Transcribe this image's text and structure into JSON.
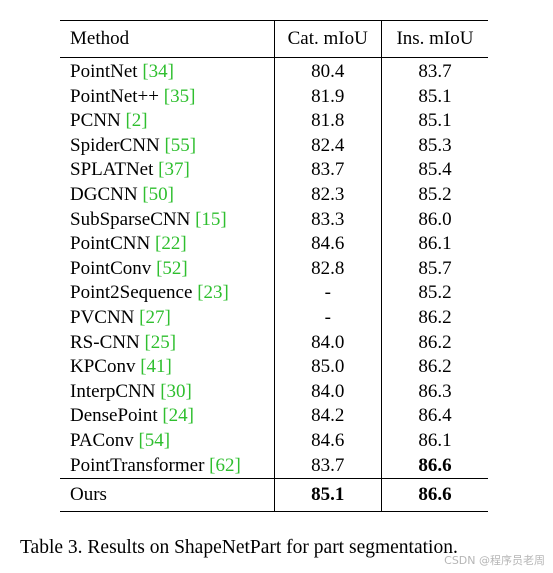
{
  "table": {
    "headers": [
      "Method",
      "Cat. mIoU",
      "Ins. mIoU"
    ],
    "rows": [
      {
        "method": "PointNet",
        "cite": "[34]",
        "cat": "80.4",
        "ins": "83.7"
      },
      {
        "method": "PointNet++",
        "cite": "[35]",
        "cat": "81.9",
        "ins": "85.1"
      },
      {
        "method": "PCNN",
        "cite": "[2]",
        "cat": "81.8",
        "ins": "85.1"
      },
      {
        "method": "SpiderCNN",
        "cite": "[55]",
        "cat": "82.4",
        "ins": "85.3"
      },
      {
        "method": "SPLATNet",
        "cite": "[37]",
        "cat": "83.7",
        "ins": "85.4"
      },
      {
        "method": "DGCNN",
        "cite": "[50]",
        "cat": "82.3",
        "ins": "85.2"
      },
      {
        "method": "SubSparseCNN",
        "cite": "[15]",
        "cat": "83.3",
        "ins": "86.0"
      },
      {
        "method": "PointCNN",
        "cite": "[22]",
        "cat": "84.6",
        "ins": "86.1"
      },
      {
        "method": "PointConv",
        "cite": "[52]",
        "cat": "82.8",
        "ins": "85.7"
      },
      {
        "method": "Point2Sequence",
        "cite": "[23]",
        "cat": "-",
        "ins": "85.2"
      },
      {
        "method": "PVCNN",
        "cite": "[27]",
        "cat": "-",
        "ins": "86.2"
      },
      {
        "method": "RS-CNN",
        "cite": "[25]",
        "cat": "84.0",
        "ins": "86.2"
      },
      {
        "method": "KPConv",
        "cite": "[41]",
        "cat": "85.0",
        "ins": "86.2"
      },
      {
        "method": "InterpCNN",
        "cite": "[30]",
        "cat": "84.0",
        "ins": "86.3"
      },
      {
        "method": "DensePoint",
        "cite": "[24]",
        "cat": "84.2",
        "ins": "86.4"
      },
      {
        "method": "PAConv",
        "cite": "[54]",
        "cat": "84.6",
        "ins": "86.1"
      },
      {
        "method": "PointTransformer",
        "cite": "[62]",
        "cat": "83.7",
        "ins": "86.6",
        "ins_bold": true
      }
    ],
    "ours": {
      "method": "Ours",
      "cat": "85.1",
      "ins": "86.6"
    }
  },
  "caption": "Table 3. Results on ShapeNetPart for part segmentation.",
  "watermark": "CSDN @程序员老周"
}
